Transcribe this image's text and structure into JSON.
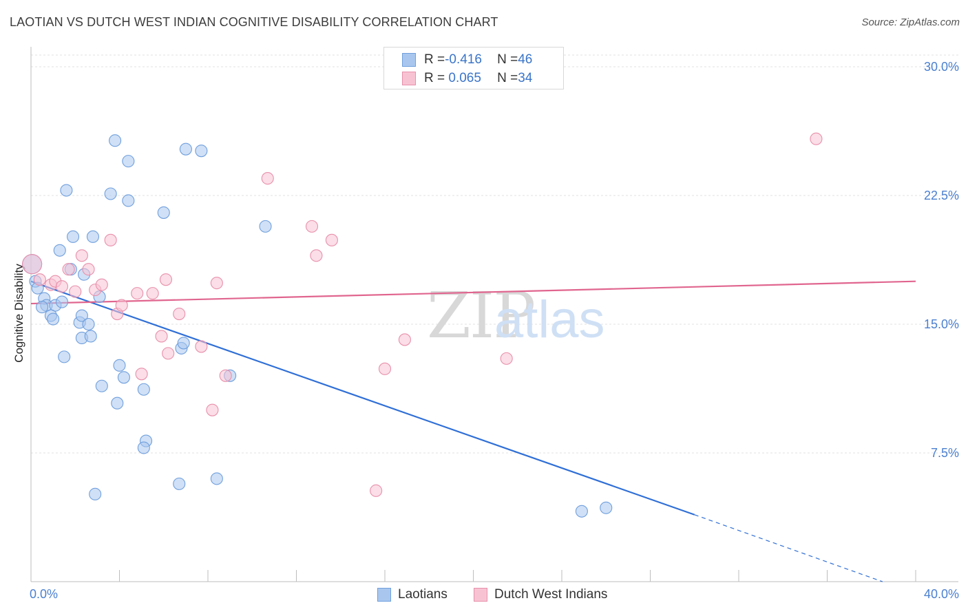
{
  "header": {
    "title": "LAOTIAN VS DUTCH WEST INDIAN COGNITIVE DISABILITY CORRELATION CHART",
    "source": "Source: ZipAtlas.com"
  },
  "watermark": {
    "zip": "ZIP",
    "atlas": "atlas"
  },
  "legend": {
    "rows": [
      {
        "r_label": "R = ",
        "r_value": "-0.416",
        "n_label": "N = ",
        "n_value": "46",
        "color": "#a9c7ee",
        "border": "#6f9fdd"
      },
      {
        "r_label": "R = ",
        "r_value": " 0.065",
        "n_label": "N = ",
        "n_value": "34",
        "color": "#f7c3d3",
        "border": "#e88fab"
      }
    ]
  },
  "chart_data": {
    "type": "scatter",
    "ylabel": "Cognitive Disability",
    "xlim": [
      0,
      40
    ],
    "ylim": [
      0,
      30
    ],
    "x_ticks": [
      {
        "value": 0,
        "label": "0.0%"
      },
      {
        "value": 40,
        "label": "40.0%"
      }
    ],
    "y_ticks": [
      {
        "value": 7.5,
        "label": "7.5%"
      },
      {
        "value": 15.0,
        "label": "15.0%"
      },
      {
        "value": 22.5,
        "label": "22.5%"
      },
      {
        "value": 30.0,
        "label": "30.0%"
      }
    ],
    "grid": true,
    "series": [
      {
        "name": "Laotians",
        "color": "#a9c7ee",
        "stroke": "#6f9fdd",
        "line_color": "#2f6fd6",
        "trend": {
          "x0": 0,
          "y0": 17.5,
          "x1": 30,
          "y1": 3.9,
          "dash_to_x": 38.5,
          "dash_to_y": 0
        },
        "points": [
          [
            0.05,
            18.5
          ],
          [
            0.2,
            17.5
          ],
          [
            0.3,
            17.1
          ],
          [
            0.6,
            16.5
          ],
          [
            0.7,
            16.1
          ],
          [
            0.5,
            16.0
          ],
          [
            1.1,
            16.1
          ],
          [
            1.4,
            16.3
          ],
          [
            0.9,
            15.5
          ],
          [
            1.0,
            15.3
          ],
          [
            1.3,
            19.3
          ],
          [
            1.8,
            18.2
          ],
          [
            1.6,
            22.8
          ],
          [
            1.9,
            20.1
          ],
          [
            2.4,
            17.9
          ],
          [
            2.2,
            15.1
          ],
          [
            2.3,
            15.5
          ],
          [
            2.6,
            15.0
          ],
          [
            2.3,
            14.2
          ],
          [
            2.7,
            14.3
          ],
          [
            1.5,
            13.1
          ],
          [
            2.8,
            20.1
          ],
          [
            3.1,
            16.6
          ],
          [
            3.6,
            22.6
          ],
          [
            3.8,
            25.7
          ],
          [
            4.4,
            24.5
          ],
          [
            4.4,
            22.2
          ],
          [
            6.0,
            21.5
          ],
          [
            7.0,
            25.2
          ],
          [
            7.7,
            25.1
          ],
          [
            10.6,
            20.7
          ],
          [
            3.2,
            11.4
          ],
          [
            3.9,
            10.4
          ],
          [
            4.0,
            12.6
          ],
          [
            4.2,
            11.9
          ],
          [
            5.1,
            11.2
          ],
          [
            5.2,
            8.2
          ],
          [
            5.1,
            7.8
          ],
          [
            6.8,
            13.6
          ],
          [
            6.9,
            13.9
          ],
          [
            9.0,
            12.0
          ],
          [
            6.7,
            5.7
          ],
          [
            8.4,
            6.0
          ],
          [
            2.9,
            5.1
          ],
          [
            24.9,
            4.1
          ],
          [
            26.0,
            4.3
          ]
        ]
      },
      {
        "name": "Dutch West Indians",
        "color": "#f7c3d3",
        "stroke": "#e88fab",
        "line_color": "#e0658e",
        "trend": {
          "x0": 0,
          "y0": 16.2,
          "x1": 40,
          "y1": 17.5
        },
        "points": [
          [
            0.05,
            18.5
          ],
          [
            0.4,
            17.6
          ],
          [
            0.9,
            17.3
          ],
          [
            1.1,
            17.5
          ],
          [
            1.4,
            17.2
          ],
          [
            1.7,
            18.2
          ],
          [
            2.0,
            16.9
          ],
          [
            2.3,
            19.0
          ],
          [
            2.6,
            18.2
          ],
          [
            2.9,
            17.0
          ],
          [
            3.2,
            17.3
          ],
          [
            3.6,
            19.9
          ],
          [
            3.9,
            15.6
          ],
          [
            4.1,
            16.1
          ],
          [
            4.8,
            16.8
          ],
          [
            5.0,
            12.1
          ],
          [
            5.5,
            16.8
          ],
          [
            5.9,
            14.3
          ],
          [
            6.1,
            17.6
          ],
          [
            6.2,
            13.3
          ],
          [
            6.7,
            15.6
          ],
          [
            7.7,
            13.7
          ],
          [
            8.2,
            10.0
          ],
          [
            8.4,
            17.4
          ],
          [
            8.8,
            12.0
          ],
          [
            10.7,
            23.5
          ],
          [
            12.7,
            20.7
          ],
          [
            12.9,
            19.0
          ],
          [
            13.6,
            19.9
          ],
          [
            16.0,
            12.4
          ],
          [
            16.9,
            14.1
          ],
          [
            21.5,
            13.0
          ],
          [
            15.6,
            5.3
          ],
          [
            35.5,
            25.8
          ]
        ]
      }
    ]
  }
}
